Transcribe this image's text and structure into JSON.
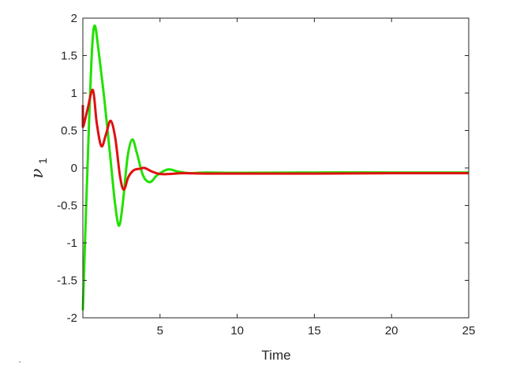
{
  "chart_data": {
    "type": "line",
    "title": "",
    "xlabel": "Time",
    "ylabel": "ν",
    "ylabel_subscript": "1",
    "xlim": [
      0,
      25
    ],
    "ylim": [
      -2,
      2
    ],
    "grid": false,
    "legend": null,
    "xticks": [
      5,
      10,
      15,
      20,
      25
    ],
    "xtick_labels": [
      "5",
      "10",
      "15",
      "20",
      "25"
    ],
    "yticks": [
      -2,
      -1.5,
      -1,
      -0.5,
      0,
      0.5,
      1,
      1.5,
      2
    ],
    "ytick_labels": [
      "-2",
      "-1.5",
      "-1",
      "-0.5",
      "0",
      "0.5",
      "1",
      "1.5",
      "2"
    ],
    "series": [
      {
        "name": "green",
        "color": "#22e000",
        "points": [
          [
            0,
            -1.9
          ],
          [
            0.2,
            -0.6
          ],
          [
            0.4,
            0.6
          ],
          [
            0.6,
            1.6
          ],
          [
            0.77,
            1.9
          ],
          [
            1.0,
            1.6
          ],
          [
            1.4,
            0.9
          ],
          [
            1.8,
            0.1
          ],
          [
            2.1,
            -0.5
          ],
          [
            2.35,
            -0.77
          ],
          [
            2.6,
            -0.45
          ],
          [
            2.9,
            0.15
          ],
          [
            3.2,
            0.38
          ],
          [
            3.5,
            0.2
          ],
          [
            3.9,
            -0.1
          ],
          [
            4.35,
            -0.19
          ],
          [
            4.8,
            -0.1
          ],
          [
            5.5,
            -0.02
          ],
          [
            6.2,
            -0.05
          ],
          [
            7.0,
            -0.07
          ],
          [
            8.0,
            -0.06
          ],
          [
            10,
            -0.065
          ],
          [
            15,
            -0.06
          ],
          [
            20,
            -0.06
          ],
          [
            25,
            -0.06
          ]
        ]
      },
      {
        "name": "red",
        "color": "#e01010",
        "points": [
          [
            0,
            0.84
          ],
          [
            0,
            0.55
          ],
          [
            0.3,
            0.78
          ],
          [
            0.65,
            1.04
          ],
          [
            0.9,
            0.6
          ],
          [
            1.2,
            0.29
          ],
          [
            1.5,
            0.45
          ],
          [
            1.8,
            0.63
          ],
          [
            2.1,
            0.4
          ],
          [
            2.4,
            -0.1
          ],
          [
            2.65,
            -0.29
          ],
          [
            2.95,
            -0.12
          ],
          [
            3.3,
            -0.03
          ],
          [
            3.7,
            -0.01
          ],
          [
            4.0,
            0.0
          ],
          [
            4.5,
            -0.05
          ],
          [
            5.0,
            -0.08
          ],
          [
            5.6,
            -0.08
          ],
          [
            6.5,
            -0.07
          ],
          [
            8,
            -0.075
          ],
          [
            10,
            -0.075
          ],
          [
            15,
            -0.075
          ],
          [
            20,
            -0.07
          ],
          [
            25,
            -0.07
          ]
        ]
      }
    ]
  }
}
